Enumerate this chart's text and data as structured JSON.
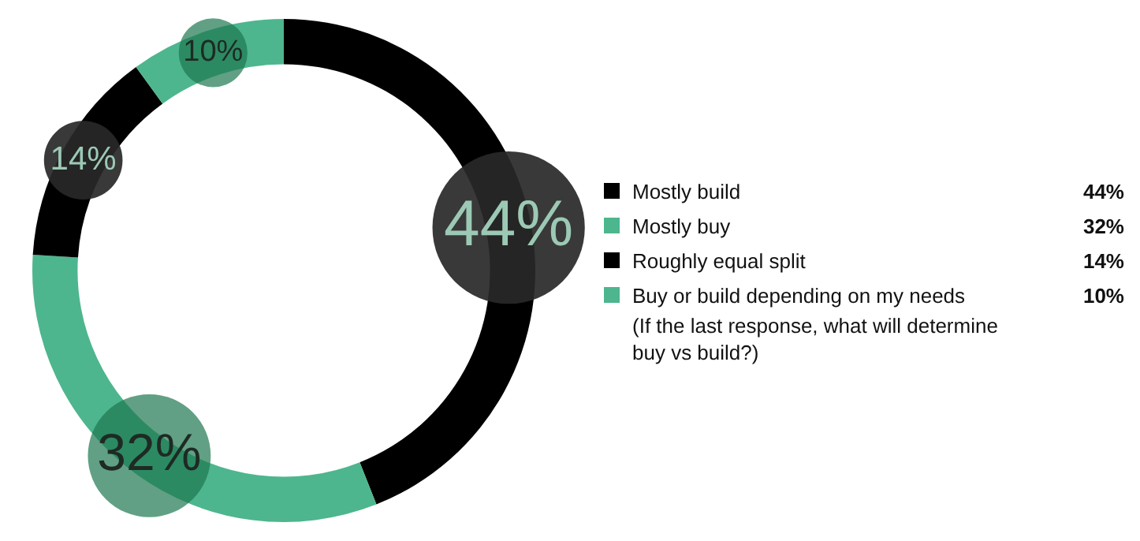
{
  "chart_data": {
    "type": "donut",
    "categories": [
      "Mostly build",
      "Mostly buy",
      "Roughly equal split",
      "Buy or build depending on my needs"
    ],
    "values": [
      44,
      32,
      14,
      10
    ],
    "colors": [
      "#000000",
      "#4db68e",
      "#000000",
      "#4db68e"
    ],
    "value_labels": [
      "44%",
      "32%",
      "14%",
      "10%"
    ],
    "legend": "right",
    "annotations": [
      "(If the last response, what will determine buy vs build?)"
    ]
  }
}
